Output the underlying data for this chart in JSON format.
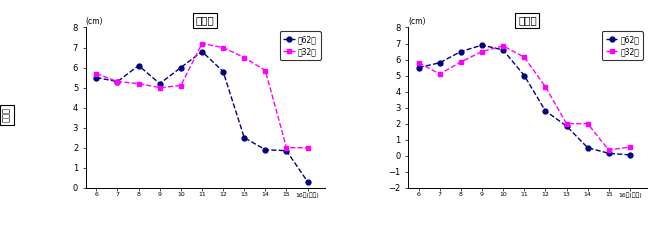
{
  "title_male": "男　子",
  "title_female": "女　子",
  "ylabel_label": "発育量",
  "ylabel_unit": "(cm)",
  "xlabel_suffix": "歳(年齢)",
  "x_values": [
    6,
    7,
    8,
    9,
    10,
    11,
    12,
    13,
    14,
    15,
    16
  ],
  "male_s62": [
    5.5,
    5.3,
    6.1,
    5.2,
    6.0,
    6.8,
    5.8,
    2.5,
    1.9,
    1.85,
    0.3
  ],
  "male_s32": [
    5.7,
    5.3,
    5.2,
    5.0,
    5.1,
    7.2,
    7.0,
    6.5,
    5.85,
    2.0,
    2.0
  ],
  "female_s62": [
    5.5,
    5.8,
    6.5,
    6.9,
    6.6,
    5.0,
    2.8,
    1.85,
    0.5,
    0.15,
    0.05
  ],
  "female_s32": [
    5.8,
    5.1,
    5.85,
    6.5,
    6.85,
    6.15,
    4.3,
    2.0,
    2.0,
    0.35,
    0.55
  ],
  "color_s62": "#000080",
  "color_s32": "#FF00FF",
  "legend_s62": "映62生",
  "legend_s32": "映32生",
  "ylim_male": [
    0,
    8
  ],
  "ylim_female": [
    -2,
    8
  ],
  "yticks_male": [
    0,
    1,
    2,
    3,
    4,
    5,
    6,
    7,
    8
  ],
  "yticks_female": [
    -2,
    -1,
    0,
    1,
    2,
    3,
    4,
    5,
    6,
    7,
    8
  ],
  "plot_bg": "#ffffff",
  "fig_bg": "#ffffff",
  "marker_s62": "o",
  "marker_s32": "s",
  "markersize": 3.5,
  "linewidth": 1.0,
  "linestyle": "--"
}
